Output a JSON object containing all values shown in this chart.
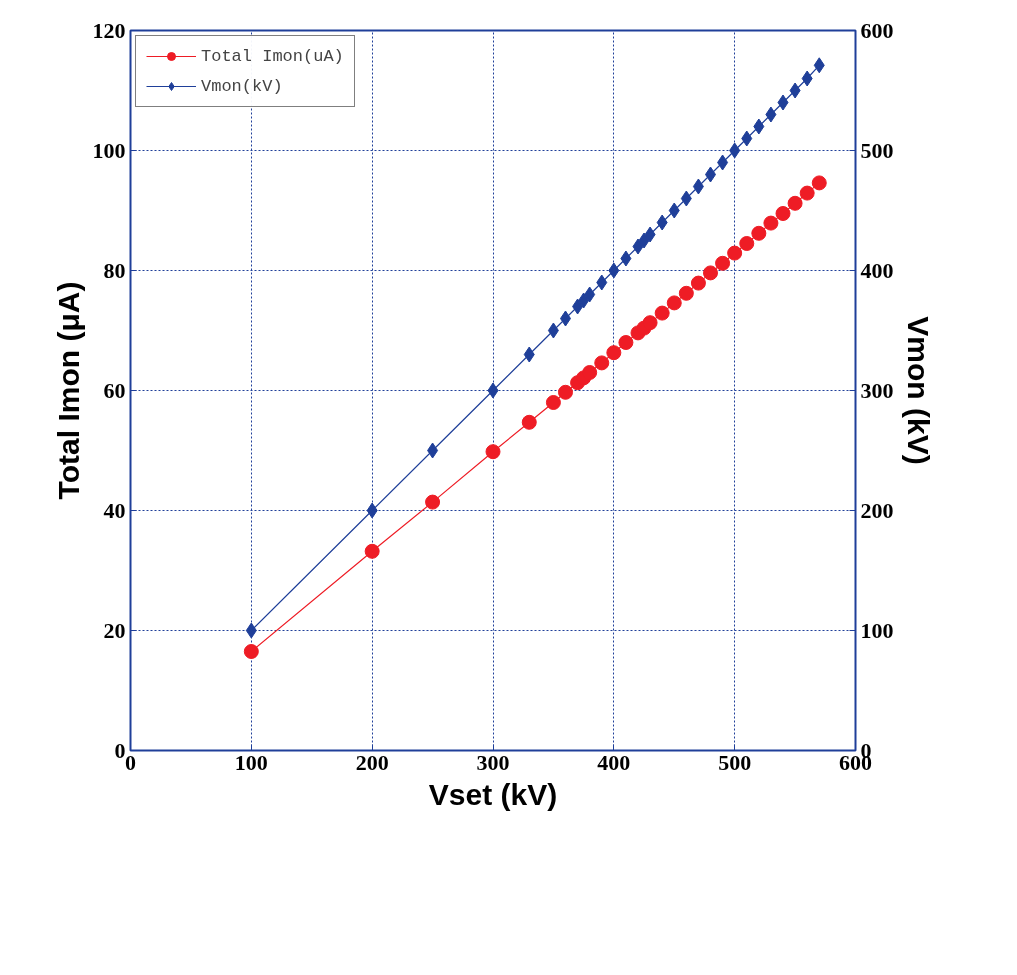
{
  "chart_data": {
    "type": "line",
    "xlabel": "Vset (kV)",
    "ylabel": "Total Imon (μA)",
    "y2label": "Vmon (kV)",
    "xlim": [
      0,
      600
    ],
    "xticks": [
      0,
      100,
      200,
      300,
      400,
      500,
      600
    ],
    "ylim": [
      0,
      120
    ],
    "yticks": [
      0,
      20,
      40,
      60,
      80,
      100,
      120
    ],
    "y2lim": [
      0,
      600
    ],
    "y2ticks": [
      0,
      100,
      200,
      300,
      400,
      500,
      600
    ],
    "grid": true,
    "legend": "top left",
    "line_style": "solid",
    "series": [
      {
        "name": "Total Imon(uA)",
        "color": "#ee1c25",
        "marker": "circle",
        "x": [
          100,
          200,
          250,
          300,
          330,
          350,
          360,
          370,
          375,
          380,
          390,
          400,
          410,
          420,
          425,
          430,
          440,
          450,
          460,
          470,
          480,
          490,
          500,
          510,
          520,
          530,
          540,
          550,
          560,
          570
        ],
        "values": [
          16.5,
          33.2,
          41.4,
          49.8,
          54.7,
          58.0,
          59.7,
          61.3,
          62.1,
          63.0,
          64.6,
          66.3,
          68.0,
          69.6,
          70.4,
          71.3,
          72.9,
          74.6,
          76.2,
          77.9,
          79.6,
          81.2,
          82.9,
          84.5,
          86.2,
          87.9,
          89.5,
          91.2,
          92.9,
          94.6
        ]
      },
      {
        "name": "Vmon(kV)",
        "color": "#1f3f99",
        "marker": "diamond",
        "axis": "y2",
        "x": [
          100,
          200,
          250,
          300,
          330,
          350,
          360,
          370,
          375,
          380,
          390,
          400,
          410,
          420,
          425,
          430,
          440,
          450,
          460,
          470,
          480,
          490,
          500,
          510,
          520,
          530,
          540,
          550,
          560,
          570
        ],
        "values": [
          100,
          200,
          250,
          300,
          330,
          350,
          360,
          370,
          375,
          380,
          390,
          400,
          410,
          420,
          425,
          430,
          440,
          450,
          460,
          470,
          480,
          490,
          500,
          510,
          520,
          530,
          540,
          550,
          560,
          571
        ]
      }
    ]
  }
}
